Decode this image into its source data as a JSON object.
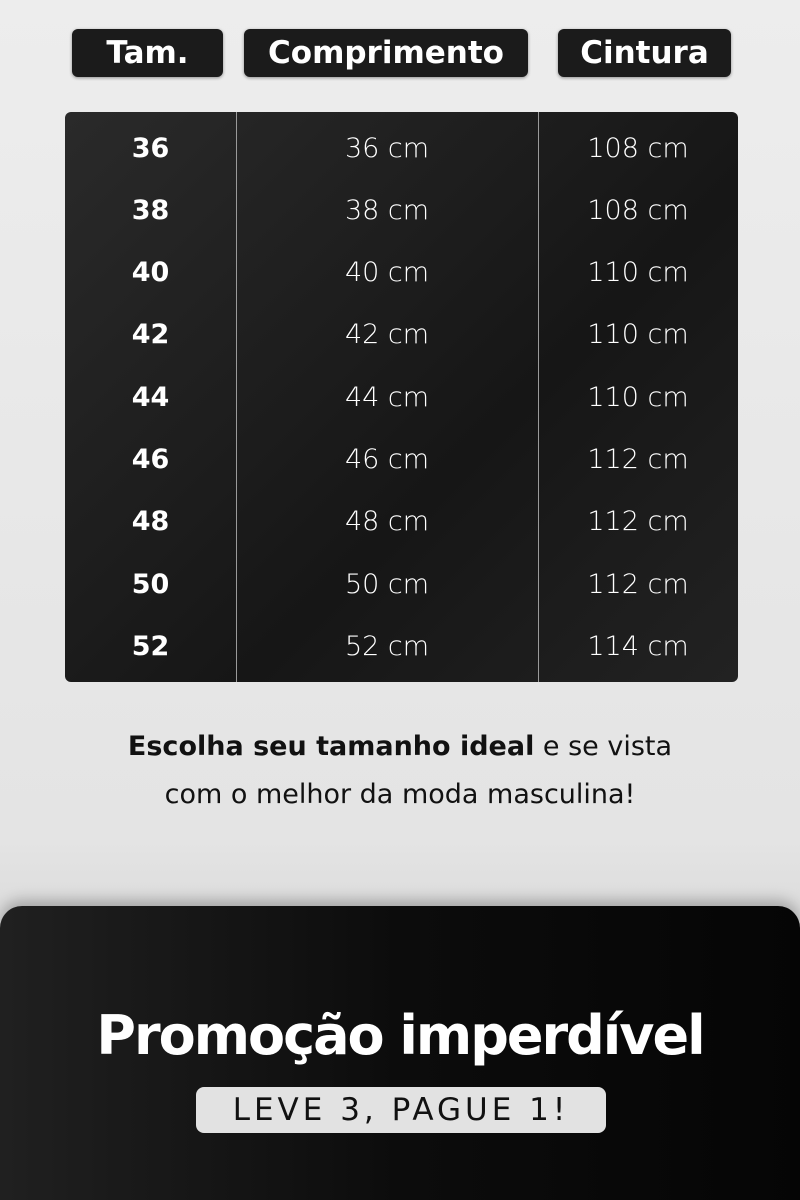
{
  "headers": {
    "size": "Tam.",
    "length": "Comprimento",
    "waist": "Cintura"
  },
  "rows": [
    {
      "size": "36",
      "length": "36 cm",
      "waist": "108 cm"
    },
    {
      "size": "38",
      "length": "38 cm",
      "waist": "108 cm"
    },
    {
      "size": "40",
      "length": "40 cm",
      "waist": "110 cm"
    },
    {
      "size": "42",
      "length": "42 cm",
      "waist": "110 cm"
    },
    {
      "size": "44",
      "length": "44 cm",
      "waist": "110 cm"
    },
    {
      "size": "46",
      "length": "46 cm",
      "waist": "112 cm"
    },
    {
      "size": "48",
      "length": "48 cm",
      "waist": "112 cm"
    },
    {
      "size": "50",
      "length": "50 cm",
      "waist": "112 cm"
    },
    {
      "size": "52",
      "length": "52 cm",
      "waist": "114 cm"
    }
  ],
  "tagline": {
    "bold": "Escolha seu tamanho ideal",
    "rest1": " e se vista",
    "line2": "com o melhor da moda masculina!"
  },
  "promo": {
    "title": "Promoção imperdível",
    "offer": "LEVE 3, PAGUE 1!"
  }
}
